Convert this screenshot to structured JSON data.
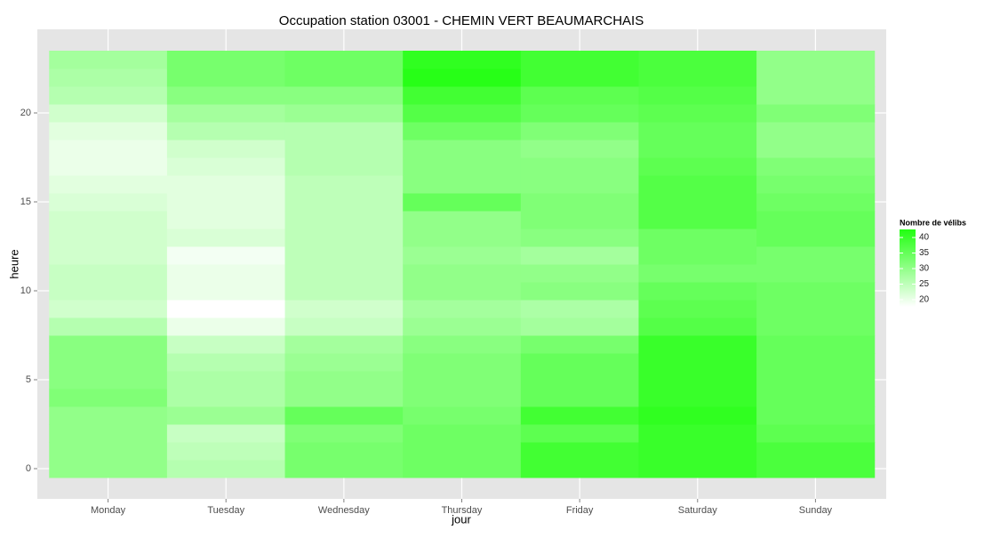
{
  "chart_data": {
    "type": "heatmap",
    "title": "Occupation station 03001 - CHEMIN VERT BEAUMARCHAIS",
    "xlabel": "jour",
    "ylabel": "heure",
    "categories": [
      "Monday",
      "Tuesday",
      "Wednesday",
      "Thursday",
      "Friday",
      "Saturday",
      "Sunday"
    ],
    "y": [
      0,
      1,
      2,
      3,
      4,
      5,
      6,
      7,
      8,
      9,
      10,
      11,
      12,
      13,
      14,
      15,
      16,
      17,
      18,
      19,
      20,
      21,
      22,
      23
    ],
    "values": [
      [
        30,
        30,
        30,
        30,
        32,
        31,
        31,
        31,
        26,
        23,
        24,
        24,
        23,
        23,
        23,
        22,
        21,
        20,
        20,
        21,
        23,
        26,
        27,
        28
      ],
      [
        26,
        25,
        24,
        29,
        27,
        27,
        26,
        24,
        20,
        17,
        20,
        20,
        19,
        22,
        21,
        21,
        21,
        22,
        23,
        26,
        28,
        31,
        33,
        33
      ],
      [
        33,
        33,
        32,
        35,
        30,
        30,
        29,
        28,
        24,
        23,
        25,
        25,
        25,
        25,
        25,
        25,
        25,
        26,
        26,
        26,
        29,
        31,
        34,
        34
      ],
      [
        34,
        34,
        34,
        33,
        32,
        32,
        32,
        31,
        29,
        28,
        30,
        30,
        29,
        30,
        30,
        35,
        31,
        31,
        31,
        34,
        37,
        39,
        42,
        41
      ],
      [
        39,
        39,
        36,
        39,
        35,
        35,
        35,
        33,
        28,
        27,
        31,
        30,
        28,
        31,
        32,
        32,
        31,
        31,
        30,
        32,
        35,
        36,
        39,
        39
      ],
      [
        40,
        40,
        40,
        41,
        40,
        40,
        40,
        40,
        37,
        36,
        35,
        33,
        34,
        34,
        37,
        37,
        37,
        36,
        35,
        35,
        36,
        37,
        38,
        38
      ],
      [
        38,
        38,
        36,
        35,
        35,
        35,
        35,
        35,
        34,
        34,
        34,
        33,
        33,
        35,
        35,
        34,
        33,
        32,
        30,
        30,
        32,
        30,
        30,
        30
      ]
    ],
    "ylim": [
      -1.7,
      24.7
    ],
    "yticks": [
      0,
      5,
      10,
      15,
      20
    ],
    "grid": true,
    "legend": {
      "title": "Nombre de vélibs",
      "ticks": [
        20,
        25,
        30,
        35,
        40
      ]
    },
    "colorlim": [
      17.7,
      42.6
    ],
    "low_color": "#ffffff",
    "high_color": "#22ff11"
  }
}
